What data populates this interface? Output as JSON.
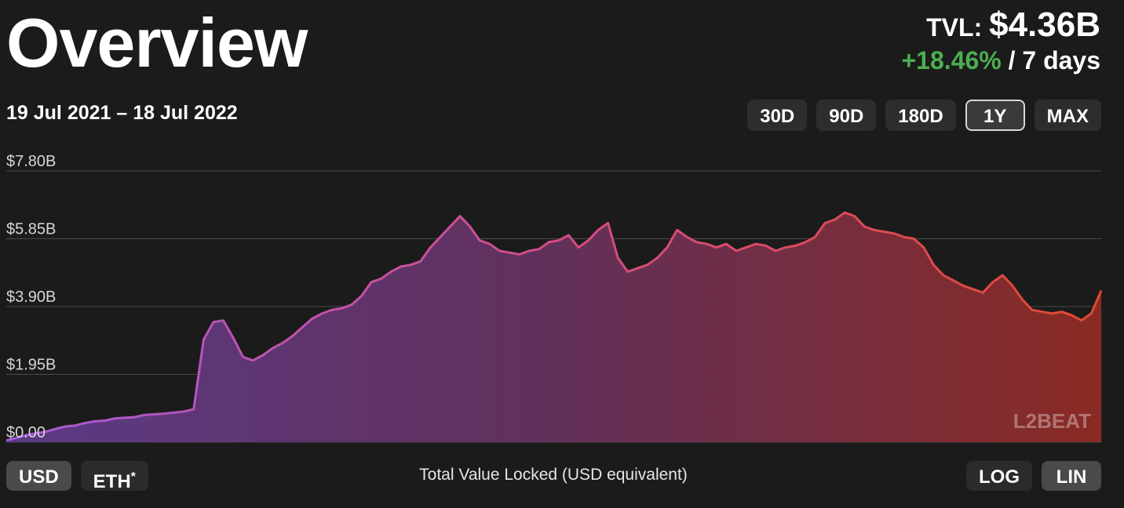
{
  "header": {
    "title": "Overview",
    "tvl_label": "TVL:",
    "tvl_value": "$4.36B",
    "change_pct": "+18.46%",
    "change_period": "/ 7 days",
    "date_range": "19 Jul 2021 – 18 Jul 2022"
  },
  "range_buttons": [
    "30D",
    "90D",
    "180D",
    "1Y",
    "MAX"
  ],
  "active_range": "1Y",
  "currency_buttons": {
    "usd": "USD",
    "eth": "ETH",
    "eth_mark": "*"
  },
  "scale_buttons": {
    "log": "LOG",
    "lin": "LIN"
  },
  "caption": "Total Value Locked (USD equivalent)",
  "watermark": "L2BEAT",
  "colors": {
    "background": "#1b1b1b",
    "positive": "#4caf50",
    "gradient_start": "#a55ad6",
    "gradient_mid": "#d44d87",
    "gradient_end": "#e04a2e"
  },
  "chart_data": {
    "type": "area",
    "title": "Total Value Locked (USD equivalent)",
    "x_start": "19 Jul 2021",
    "x_end": "18 Jul 2022",
    "scale": "linear",
    "ylim": [
      0,
      7.8
    ],
    "yticks": [
      "$0.00",
      "$1.95B",
      "$3.90B",
      "$5.85B",
      "$7.80B"
    ],
    "ytick_values": [
      0,
      1.95,
      3.9,
      5.85,
      7.8
    ],
    "grid": true,
    "series": [
      {
        "values": [
          0.05,
          0.12,
          0.2,
          0.25,
          0.3,
          0.38,
          0.45,
          0.48,
          0.55,
          0.6,
          0.62,
          0.68,
          0.7,
          0.72,
          0.78,
          0.8,
          0.82,
          0.85,
          0.88,
          0.95,
          2.95,
          3.45,
          3.5,
          3.0,
          2.45,
          2.35,
          2.5,
          2.7,
          2.85,
          3.05,
          3.3,
          3.55,
          3.7,
          3.8,
          3.85,
          3.95,
          4.2,
          4.6,
          4.7,
          4.9,
          5.05,
          5.1,
          5.2,
          5.6,
          5.9,
          6.2,
          6.5,
          6.2,
          5.8,
          5.7,
          5.5,
          5.45,
          5.4,
          5.5,
          5.55,
          5.75,
          5.8,
          5.95,
          5.6,
          5.8,
          6.1,
          6.3,
          5.3,
          4.9,
          5.0,
          5.1,
          5.3,
          5.6,
          6.1,
          5.9,
          5.75,
          5.7,
          5.6,
          5.7,
          5.5,
          5.6,
          5.7,
          5.65,
          5.5,
          5.6,
          5.65,
          5.75,
          5.9,
          6.3,
          6.4,
          6.6,
          6.5,
          6.2,
          6.1,
          6.05,
          6.0,
          5.9,
          5.85,
          5.6,
          5.1,
          4.8,
          4.65,
          4.5,
          4.4,
          4.3,
          4.6,
          4.8,
          4.5,
          4.1,
          3.8,
          3.75,
          3.7,
          3.75,
          3.65,
          3.5,
          3.7,
          4.36
        ]
      }
    ]
  }
}
